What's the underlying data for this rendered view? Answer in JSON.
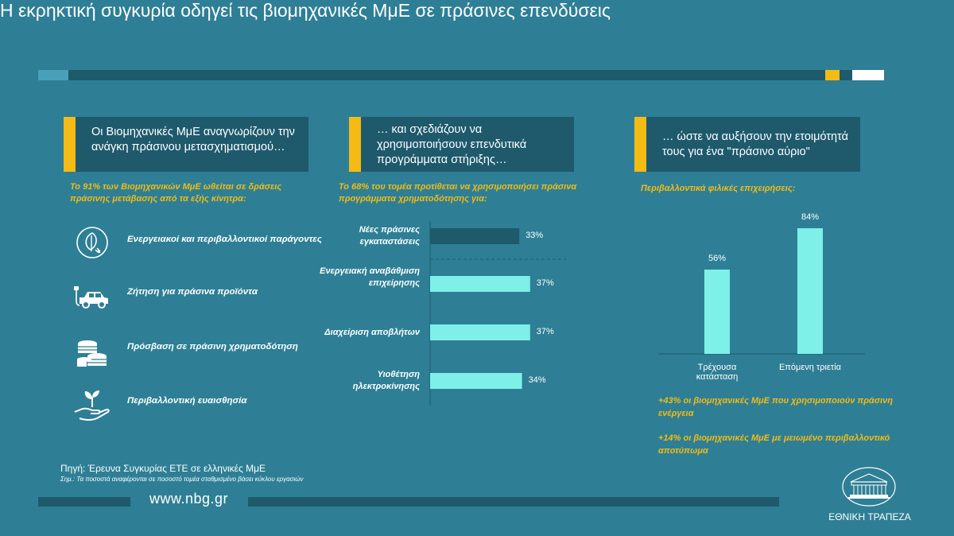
{
  "title": "Η εκρηκτική συγκυρία οδηγεί τις βιομηχανικές ΜμΕ σε πράσινες επενδύσεις",
  "colors": {
    "background": "#2e7f95",
    "panel": "#1e5a6c",
    "accent": "#f3bb14",
    "bar_light": "#7ef0e8",
    "bar_dark": "#1e5a6c"
  },
  "panels": [
    {
      "text": "Οι Βιομηχανικές ΜμΕ αναγνωρίζουν την ανάγκη πράσινου μετασχηματισμού…"
    },
    {
      "text": "… και σχεδιάζουν να χρησιμοποιήσουν επενδυτικά προγράμματα στήριξης…"
    },
    {
      "text": "… ώστε να αυξήσουν την ετοιμότητά τους για ένα \"πράσινο αύριο\""
    }
  ],
  "left": {
    "subtitle": "Το 91% των Βιομηχανικών ΜμΕ ωθείται σε δράσεις πράσινης μετάβασης από τα εξής κίνητρα:",
    "drivers": [
      {
        "icon": "leaf-plug-icon",
        "label": "Ενεργειακοί και περιβαλλοντικοί παράγοντες"
      },
      {
        "icon": "electric-car-icon",
        "label": "Ζήτηση για πράσινα προϊόντα"
      },
      {
        "icon": "coins-icon",
        "label": "Πρόσβαση σε πράσινη χρηματοδότηση"
      },
      {
        "icon": "hand-plant-icon",
        "label": "Περιβαλλοντική ευαισθησία"
      }
    ]
  },
  "middle": {
    "subtitle": "Το 68% του τομέα προτίθεται να χρησιμοποιήσει πράσινα προγράμματα χρηματοδότησης για:"
  },
  "right": {
    "subtitle": "Περιβαλλοντικά φιλικές επιχειρήσεις:",
    "notes": [
      "+43% οι βιομηχανικές ΜμΕ που χρησιμοποιούν πράσινη ενέργεια",
      "+14% οι βιομηχανικές ΜμΕ με μειωμένο περιβαλλοντικό αποτύπωμα"
    ]
  },
  "chart_data": [
    {
      "type": "bar",
      "orientation": "horizontal",
      "categories": [
        "Νέες πράσινες εγκαταστάσεις",
        "Ενεργειακή αναβάθμιση επιχείρησης",
        "Διαχείριση αποβλήτων",
        "Υιοθέτηση ηλεκτροκίνησης"
      ],
      "values": [
        33,
        37,
        37,
        34
      ],
      "value_labels": [
        "33%",
        "37%",
        "37%",
        "34%"
      ],
      "xlim": [
        0,
        80
      ]
    },
    {
      "type": "bar",
      "categories": [
        "Τρέχουσα κατάσταση",
        "Επόμενη τριετία"
      ],
      "values": [
        56,
        84
      ],
      "value_labels": [
        "56%",
        "84%"
      ],
      "ylim": [
        0,
        100
      ]
    }
  ],
  "footer": {
    "source": "Πηγή: Έρευνα Συγκυρίας ΕΤΕ σε ελληνικές ΜμΕ",
    "note": "Σημ.: Τα ποσοστά αναφέρονται σε ποσοστό τομέα σταθμισμένο βάσει κύκλου εργασιών",
    "website": "www.nbg.gr",
    "logo_text": "ΕΘΝΙΚΗ ΤΡΑΠΕΖΑ"
  }
}
